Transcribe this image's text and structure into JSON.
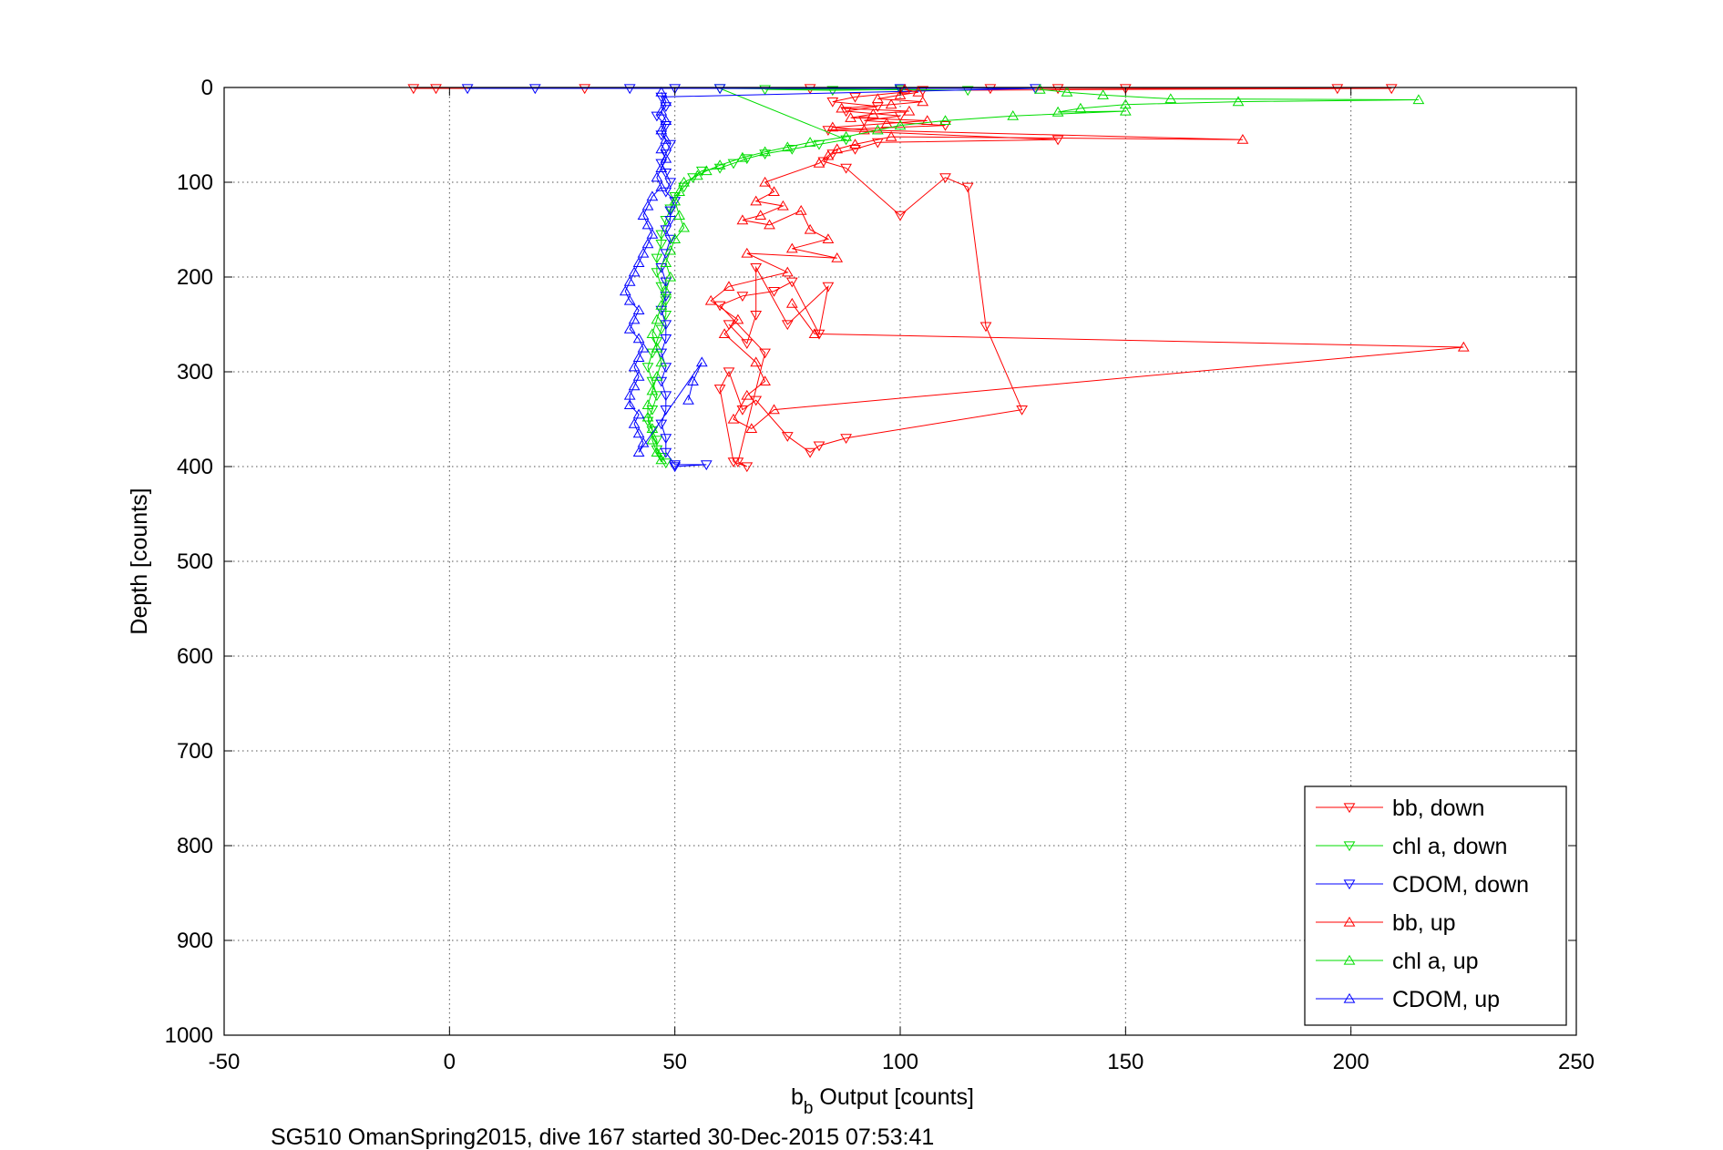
{
  "chart_data": {
    "type": "scatter",
    "xlabel": "b",
    "xlabel_sub": "b",
    "xlabel_suffix": " Output [counts]",
    "ylabel": "Depth [counts]",
    "caption": "SG510 OmanSpring2015, dive 167 started 30-Dec-2015 07:53:41",
    "xlim": [
      -50,
      250
    ],
    "ylim": [
      0,
      1000
    ],
    "y_reversed": true,
    "grid": "dotted",
    "legend_position": "lower-right",
    "x_ticks": [
      "-50",
      "0",
      "50",
      "100",
      "150",
      "200",
      "250"
    ],
    "y_ticks": [
      "0",
      "100",
      "200",
      "300",
      "400",
      "500",
      "600",
      "700",
      "800",
      "900",
      "1000"
    ],
    "colors": {
      "bb": "#ff0000",
      "chl": "#00dd00",
      "cdom": "#0000ff"
    },
    "series": [
      {
        "name": "bb, down",
        "color": "#ff0000",
        "marker": "triangle-down",
        "connect": true,
        "points": [
          [
            -8,
            1
          ],
          [
            -3,
            1
          ],
          [
            30,
            1
          ],
          [
            80,
            1
          ],
          [
            120,
            1
          ],
          [
            135,
            1
          ],
          [
            150,
            1
          ],
          [
            197,
            1
          ],
          [
            209,
            1
          ],
          [
            105,
            3
          ],
          [
            90,
            10
          ],
          [
            85,
            15
          ],
          [
            95,
            20
          ],
          [
            88,
            25
          ],
          [
            100,
            30
          ],
          [
            92,
            35
          ],
          [
            110,
            40
          ],
          [
            84,
            45
          ],
          [
            135,
            55
          ],
          [
            95,
            58
          ],
          [
            90,
            65
          ],
          [
            85,
            70
          ],
          [
            83,
            78
          ],
          [
            88,
            85
          ],
          [
            100,
            135
          ],
          [
            110,
            95
          ],
          [
            115,
            105
          ],
          [
            119,
            252
          ],
          [
            127,
            340
          ],
          [
            88,
            370
          ],
          [
            82,
            378
          ],
          [
            80,
            385
          ],
          [
            75,
            368
          ],
          [
            68,
            330
          ],
          [
            65,
            340
          ],
          [
            62,
            300
          ],
          [
            60,
            318
          ],
          [
            63,
            395
          ],
          [
            66,
            400
          ],
          [
            64,
            395
          ],
          [
            70,
            280
          ],
          [
            60,
            230
          ],
          [
            65,
            220
          ],
          [
            72,
            215
          ],
          [
            76,
            205
          ],
          [
            82,
            260
          ],
          [
            84,
            210
          ],
          [
            75,
            250
          ],
          [
            68,
            190
          ],
          [
            68,
            240
          ],
          [
            66,
            270
          ],
          [
            62,
            250
          ]
        ]
      },
      {
        "name": "chl a, down",
        "color": "#00dd00",
        "marker": "triangle-down",
        "connect": true,
        "points": [
          [
            70,
            2
          ],
          [
            85,
            3
          ],
          [
            100,
            2
          ],
          [
            115,
            3
          ],
          [
            60,
            1
          ],
          [
            88,
            55
          ],
          [
            82,
            60
          ],
          [
            76,
            65
          ],
          [
            70,
            70
          ],
          [
            66,
            75
          ],
          [
            63,
            80
          ],
          [
            60,
            85
          ],
          [
            56,
            88
          ],
          [
            54,
            95
          ],
          [
            52,
            105
          ],
          [
            50,
            115
          ],
          [
            49,
            128
          ],
          [
            48,
            140
          ],
          [
            47,
            155
          ],
          [
            47,
            165
          ],
          [
            46,
            180
          ],
          [
            46,
            195
          ],
          [
            47,
            210
          ],
          [
            48,
            225
          ],
          [
            48,
            240
          ],
          [
            47,
            255
          ],
          [
            46,
            268
          ],
          [
            45,
            280
          ],
          [
            44,
            295
          ],
          [
            45,
            310
          ],
          [
            46,
            325
          ],
          [
            45,
            340
          ],
          [
            44,
            352
          ],
          [
            45,
            362
          ],
          [
            46,
            372
          ],
          [
            46,
            382
          ],
          [
            47,
            390
          ],
          [
            48,
            396
          ]
        ]
      },
      {
        "name": "CDOM, down",
        "color": "#0000ff",
        "marker": "triangle-down",
        "connect": true,
        "points": [
          [
            4,
            1
          ],
          [
            19,
            1
          ],
          [
            40,
            1
          ],
          [
            50,
            1
          ],
          [
            60,
            1
          ],
          [
            100,
            1
          ],
          [
            130,
            1
          ],
          [
            47,
            10
          ],
          [
            48,
            20
          ],
          [
            46,
            30
          ],
          [
            48,
            40
          ],
          [
            47,
            50
          ],
          [
            49,
            60
          ],
          [
            48,
            70
          ],
          [
            47,
            80
          ],
          [
            48,
            90
          ],
          [
            49,
            100
          ],
          [
            48,
            110
          ],
          [
            50,
            120
          ],
          [
            49,
            130
          ],
          [
            49,
            140
          ],
          [
            48,
            150
          ],
          [
            49,
            160
          ],
          [
            48,
            175
          ],
          [
            47,
            190
          ],
          [
            48,
            205
          ],
          [
            48,
            220
          ],
          [
            47,
            235
          ],
          [
            48,
            250
          ],
          [
            48,
            265
          ],
          [
            47,
            280
          ],
          [
            48,
            295
          ],
          [
            47,
            310
          ],
          [
            48,
            325
          ],
          [
            48,
            340
          ],
          [
            47,
            355
          ],
          [
            48,
            370
          ],
          [
            48,
            385
          ],
          [
            50,
            398
          ],
          [
            57,
            398
          ],
          [
            50,
            400
          ]
        ]
      },
      {
        "name": "bb, up",
        "color": "#ff0000",
        "marker": "triangle-up",
        "connect": true,
        "points": [
          [
            101,
            2
          ],
          [
            104,
            5
          ],
          [
            100,
            8
          ],
          [
            95,
            12
          ],
          [
            105,
            15
          ],
          [
            98,
            18
          ],
          [
            87,
            22
          ],
          [
            102,
            25
          ],
          [
            94,
            28
          ],
          [
            89,
            32
          ],
          [
            106,
            35
          ],
          [
            97,
            38
          ],
          [
            85,
            42
          ],
          [
            92,
            45
          ],
          [
            176,
            55
          ],
          [
            98,
            52
          ],
          [
            90,
            60
          ],
          [
            86,
            65
          ],
          [
            84,
            72
          ],
          [
            82,
            80
          ],
          [
            70,
            100
          ],
          [
            72,
            110
          ],
          [
            68,
            120
          ],
          [
            74,
            125
          ],
          [
            69,
            135
          ],
          [
            65,
            140
          ],
          [
            71,
            145
          ],
          [
            78,
            130
          ],
          [
            80,
            150
          ],
          [
            84,
            160
          ],
          [
            76,
            170
          ],
          [
            86,
            180
          ],
          [
            66,
            175
          ],
          [
            75,
            195
          ],
          [
            62,
            210
          ],
          [
            58,
            225
          ],
          [
            64,
            245
          ],
          [
            61,
            260
          ],
          [
            68,
            290
          ],
          [
            70,
            310
          ],
          [
            66,
            325
          ],
          [
            63,
            350
          ],
          [
            67,
            360
          ],
          [
            72,
            340
          ],
          [
            225,
            274
          ],
          [
            81,
            260
          ],
          [
            76,
            228
          ]
        ]
      },
      {
        "name": "chl a, up",
        "color": "#00dd00",
        "marker": "triangle-up",
        "connect": true,
        "points": [
          [
            131,
            2
          ],
          [
            137,
            5
          ],
          [
            145,
            8
          ],
          [
            160,
            12
          ],
          [
            215,
            13
          ],
          [
            175,
            15
          ],
          [
            150,
            18
          ],
          [
            140,
            22
          ],
          [
            135,
            26
          ],
          [
            150,
            25
          ],
          [
            125,
            30
          ],
          [
            110,
            35
          ],
          [
            100,
            40
          ],
          [
            95,
            45
          ],
          [
            88,
            52
          ],
          [
            80,
            58
          ],
          [
            75,
            63
          ],
          [
            70,
            68
          ],
          [
            65,
            74
          ],
          [
            60,
            82
          ],
          [
            57,
            88
          ],
          [
            55,
            93
          ],
          [
            52,
            100
          ],
          [
            51,
            110
          ],
          [
            50,
            120
          ],
          [
            51,
            135
          ],
          [
            52,
            148
          ],
          [
            50,
            160
          ],
          [
            49,
            172
          ],
          [
            48,
            185
          ],
          [
            49,
            200
          ],
          [
            48,
            215
          ],
          [
            47,
            230
          ],
          [
            46,
            245
          ],
          [
            45,
            260
          ],
          [
            46,
            275
          ],
          [
            47,
            290
          ],
          [
            46,
            305
          ],
          [
            45,
            320
          ],
          [
            44,
            335
          ],
          [
            44,
            348
          ],
          [
            45,
            360
          ],
          [
            45,
            372
          ],
          [
            46,
            385
          ],
          [
            47,
            393
          ]
        ]
      },
      {
        "name": "CDOM, up",
        "color": "#0000ff",
        "marker": "triangle-up",
        "connect": true,
        "points": [
          [
            47,
            5
          ],
          [
            48,
            15
          ],
          [
            47,
            25
          ],
          [
            48,
            35
          ],
          [
            47,
            45
          ],
          [
            48,
            55
          ],
          [
            47,
            65
          ],
          [
            48,
            75
          ],
          [
            47,
            85
          ],
          [
            46,
            95
          ],
          [
            47,
            105
          ],
          [
            45,
            115
          ],
          [
            44,
            125
          ],
          [
            43,
            135
          ],
          [
            44,
            145
          ],
          [
            45,
            155
          ],
          [
            44,
            165
          ],
          [
            43,
            175
          ],
          [
            42,
            185
          ],
          [
            41,
            195
          ],
          [
            40,
            205
          ],
          [
            39,
            215
          ],
          [
            40,
            225
          ],
          [
            42,
            235
          ],
          [
            41,
            245
          ],
          [
            40,
            255
          ],
          [
            42,
            265
          ],
          [
            43,
            275
          ],
          [
            42,
            285
          ],
          [
            41,
            295
          ],
          [
            42,
            305
          ],
          [
            41,
            315
          ],
          [
            40,
            325
          ],
          [
            40,
            335
          ],
          [
            42,
            345
          ],
          [
            41,
            355
          ],
          [
            42,
            365
          ],
          [
            43,
            375
          ],
          [
            42,
            385
          ],
          [
            56,
            290
          ],
          [
            54,
            310
          ],
          [
            53,
            330
          ]
        ]
      }
    ]
  }
}
